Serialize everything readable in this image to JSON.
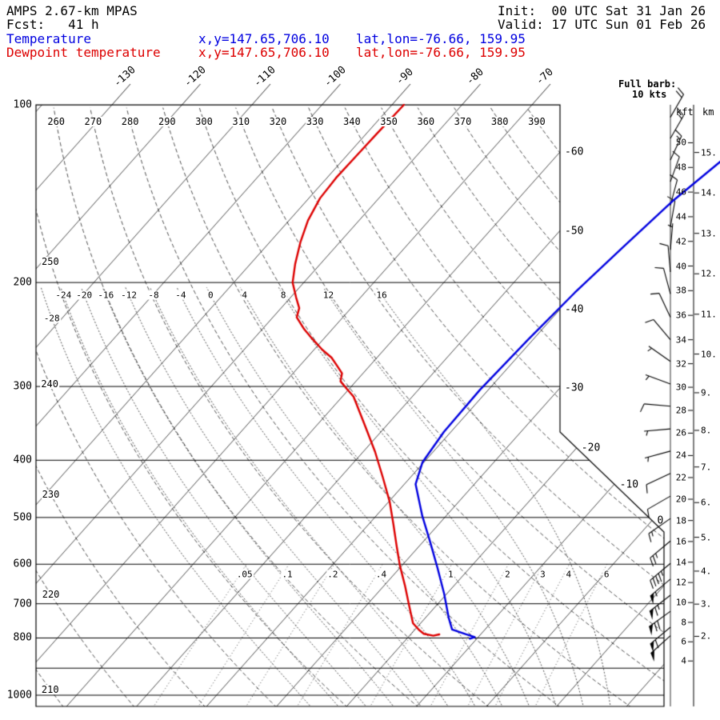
{
  "header": {
    "model": "AMPS 2.67-km MPAS",
    "fcst": "Fcst:   41 h",
    "init": "Init:  00 UTC Sat 31 Jan 26",
    "valid": "Valid: 17 UTC Sun 01 Feb 26"
  },
  "legend": {
    "temperature": {
      "label": "Temperature",
      "xy": "x,y=147.65,706.10",
      "latlon": "lat,lon=-76.66, 159.95"
    },
    "dewpoint": {
      "label": "Dewpoint temperature",
      "xy": "x,y=147.65,706.10",
      "latlon": "lat,lon=-76.66, 159.95"
    }
  },
  "wind_note": {
    "line1": "Full barb:",
    "line2": "10 kts"
  },
  "axes": {
    "pressure_hpa_labels": [
      100,
      200,
      300,
      400,
      500,
      600,
      700,
      800,
      1000
    ],
    "isotherm_top_labels_degC": [
      -130,
      -120,
      -110,
      -100,
      -90,
      -80,
      -70
    ],
    "isotherm_right_labels_degC": [
      -60,
      -50,
      -40,
      -30,
      -20,
      -10,
      0
    ],
    "dry_adiabat_top_labels_K": [
      260,
      270,
      280,
      290,
      300,
      310,
      320,
      330,
      340,
      350,
      360,
      370,
      380,
      390
    ],
    "dry_adiabat_left_labels_K": [
      250,
      240,
      230,
      220,
      210
    ],
    "moist_adiabat_labels_degC": [
      -24,
      -20,
      -16,
      -12,
      -8,
      -4,
      0,
      4,
      8,
      12,
      16
    ],
    "moist_adiabat_left_label_degC": -28,
    "mixing_ratio_labels": [
      ".05",
      ".1",
      ".2",
      ".4",
      "1",
      "2",
      "3",
      "4",
      "6"
    ],
    "mixing_ratio_values_gkg": [
      0.05,
      0.1,
      0.2,
      0.4,
      1,
      2,
      3,
      4,
      6
    ],
    "height_kft_header": "kft",
    "height_km_header": "km",
    "kft_min": 4,
    "kft_max": 50,
    "kft_step": 2,
    "km_min": 2,
    "km_max": 15,
    "km_step": 1
  },
  "colors": {
    "temperature": "#0000e0",
    "dewpoint": "#dd0000",
    "grid": "#000000",
    "background": "#ffffff"
  },
  "chart_data": {
    "type": "line",
    "title": "AMPS 2.67-km MPAS skew-T / log-p forecast sounding",
    "pressure_range_hPa": [
      100,
      1050
    ],
    "isotherms_degC": {
      "min": -160,
      "max": 40,
      "step": 10
    },
    "dry_adiabats_K": {
      "min": 210,
      "max": 390,
      "step": 10
    },
    "moist_adiabats_degC": {
      "min": -28,
      "max": 16,
      "step": 4
    },
    "wind_barbs_full_barb_kt": 10,
    "series": [
      {
        "name": "Temperature",
        "units": [
          "hPa",
          "degC"
        ],
        "points": [
          [
            124,
            -35.8
          ],
          [
            146,
            -37.7
          ],
          [
            174,
            -38.9
          ],
          [
            208,
            -40.0
          ],
          [
            250,
            -40.7
          ],
          [
            304,
            -41.2
          ],
          [
            358,
            -41.0
          ],
          [
            403,
            -40.2
          ],
          [
            439,
            -38.4
          ],
          [
            497,
            -33.4
          ],
          [
            551,
            -28.9
          ],
          [
            609,
            -24.6
          ],
          [
            673,
            -20.4
          ],
          [
            739,
            -16.7
          ],
          [
            774,
            -14.7
          ],
          [
            788,
            -12.2
          ],
          [
            797,
            -10.5
          ],
          [
            802,
            -11.0
          ]
        ]
      },
      {
        "name": "Dewpoint temperature",
        "units": [
          "hPa",
          "degC"
        ],
        "points": [
          [
            100,
            -88.3
          ],
          [
            112,
            -88.5
          ],
          [
            122,
            -88.6
          ],
          [
            133,
            -88.7
          ],
          [
            144,
            -88.4
          ],
          [
            157,
            -87.3
          ],
          [
            171,
            -85.6
          ],
          [
            186,
            -83.6
          ],
          [
            200,
            -81.6
          ],
          [
            212,
            -79.2
          ],
          [
            221,
            -77.4
          ],
          [
            229,
            -76.6
          ],
          [
            240,
            -74.0
          ],
          [
            250,
            -71.4
          ],
          [
            260,
            -68.8
          ],
          [
            268,
            -66.5
          ],
          [
            277,
            -64.6
          ],
          [
            285,
            -63.0
          ],
          [
            294,
            -62.2
          ],
          [
            303,
            -60.3
          ],
          [
            312,
            -58.4
          ],
          [
            347,
            -53.4
          ],
          [
            387,
            -48.3
          ],
          [
            428,
            -43.9
          ],
          [
            471,
            -39.8
          ],
          [
            513,
            -36.5
          ],
          [
            558,
            -33.3
          ],
          [
            603,
            -30.3
          ],
          [
            654,
            -26.9
          ],
          [
            703,
            -24.0
          ],
          [
            755,
            -21.1
          ],
          [
            775,
            -19.4
          ],
          [
            787,
            -18.2
          ],
          [
            793,
            -16.6
          ],
          [
            789,
            -15.9
          ]
        ]
      }
    ],
    "wind_barbs": [
      {
        "p": 105,
        "spd_kt": 20,
        "dir_deg": 30
      },
      {
        "p": 114,
        "spd_kt": 15,
        "dir_deg": 30
      },
      {
        "p": 124,
        "spd_kt": 15,
        "dir_deg": 25
      },
      {
        "p": 135,
        "spd_kt": 10,
        "dir_deg": 20
      },
      {
        "p": 148,
        "spd_kt": 10,
        "dir_deg": 15
      },
      {
        "p": 161,
        "spd_kt": 10,
        "dir_deg": 10
      },
      {
        "p": 176,
        "spd_kt": 5,
        "dir_deg": 5
      },
      {
        "p": 192,
        "spd_kt": 10,
        "dir_deg": 355
      },
      {
        "p": 209,
        "spd_kt": 10,
        "dir_deg": 345
      },
      {
        "p": 229,
        "spd_kt": 10,
        "dir_deg": 335
      },
      {
        "p": 250,
        "spd_kt": 10,
        "dir_deg": 320
      },
      {
        "p": 272,
        "spd_kt": 5,
        "dir_deg": 305
      },
      {
        "p": 297,
        "spd_kt": 5,
        "dir_deg": 290
      },
      {
        "p": 324,
        "spd_kt": 10,
        "dir_deg": 275
      },
      {
        "p": 354,
        "spd_kt": 5,
        "dir_deg": 265
      },
      {
        "p": 386,
        "spd_kt": 5,
        "dir_deg": 255
      },
      {
        "p": 421,
        "spd_kt": 10,
        "dir_deg": 245
      },
      {
        "p": 460,
        "spd_kt": 10,
        "dir_deg": 240
      },
      {
        "p": 502,
        "spd_kt": 15,
        "dir_deg": 235
      },
      {
        "p": 548,
        "spd_kt": 25,
        "dir_deg": 230
      },
      {
        "p": 598,
        "spd_kt": 45,
        "dir_deg": 230
      },
      {
        "p": 636,
        "spd_kt": 55,
        "dir_deg": 230
      },
      {
        "p": 677,
        "spd_kt": 65,
        "dir_deg": 232
      },
      {
        "p": 721,
        "spd_kt": 70,
        "dir_deg": 234
      },
      {
        "p": 767,
        "spd_kt": 60,
        "dir_deg": 230
      },
      {
        "p": 793,
        "spd_kt": 50,
        "dir_deg": 228
      }
    ]
  }
}
